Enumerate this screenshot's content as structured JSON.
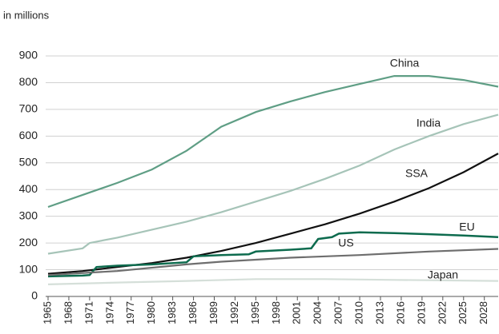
{
  "chart_data": {
    "type": "line",
    "subtitle": "in millions",
    "xlim": [
      1965,
      2030
    ],
    "ylim": [
      0,
      900
    ],
    "xticks": [
      1965,
      1968,
      1971,
      1974,
      1977,
      1980,
      1983,
      1986,
      1989,
      1992,
      1995,
      1998,
      2001,
      2004,
      2007,
      2010,
      2013,
      2016,
      2019,
      2022,
      2025,
      2028
    ],
    "yticks": [
      0,
      100,
      200,
      300,
      400,
      500,
      600,
      700,
      800,
      900
    ],
    "grid": true,
    "series": [
      {
        "name": "China",
        "color": "#5f9e85",
        "x": [
          1965,
          1970,
          1975,
          1980,
          1985,
          1990,
          1995,
          2000,
          2005,
          2010,
          2015,
          2020,
          2025,
          2030
        ],
        "values": [
          335,
          380,
          425,
          475,
          545,
          635,
          690,
          730,
          765,
          795,
          825,
          825,
          810,
          785
        ]
      },
      {
        "name": "India",
        "color": "#a6c4b8",
        "x": [
          1965,
          1970,
          1971,
          1975,
          1980,
          1985,
          1990,
          1995,
          2000,
          2005,
          2010,
          2015,
          2020,
          2025,
          2030
        ],
        "values": [
          160,
          180,
          200,
          220,
          250,
          280,
          315,
          355,
          395,
          440,
          490,
          550,
          600,
          645,
          680
        ]
      },
      {
        "name": "SSA",
        "color": "#111111",
        "x": [
          1965,
          1970,
          1975,
          1980,
          1985,
          1990,
          1995,
          2000,
          2005,
          2010,
          2015,
          2020,
          2025,
          2030
        ],
        "values": [
          85,
          95,
          110,
          125,
          145,
          170,
          200,
          235,
          270,
          310,
          355,
          405,
          465,
          535
        ]
      },
      {
        "name": "EU",
        "color": "#0d6b4e",
        "x": [
          1965,
          1970,
          1971,
          1972,
          1975,
          1980,
          1985,
          1986,
          1990,
          1994,
          1995,
          2000,
          2003,
          2004,
          2006,
          2007,
          2010,
          2015,
          2020,
          2025,
          2030
        ],
        "values": [
          75,
          78,
          80,
          110,
          115,
          120,
          128,
          150,
          155,
          158,
          168,
          175,
          180,
          215,
          222,
          235,
          240,
          237,
          233,
          228,
          222
        ]
      },
      {
        "name": "US",
        "color": "#6e6e6e",
        "x": [
          1965,
          1975,
          1985,
          1990,
          2000,
          2010,
          2020,
          2030
        ],
        "values": [
          80,
          95,
          120,
          130,
          145,
          155,
          168,
          178
        ]
      },
      {
        "name": "Japan",
        "color": "#d5dfd9",
        "x": [
          1965,
          1975,
          1985,
          1995,
          2005,
          2015,
          2030
        ],
        "values": [
          45,
          52,
          58,
          65,
          65,
          62,
          58
        ]
      }
    ]
  }
}
